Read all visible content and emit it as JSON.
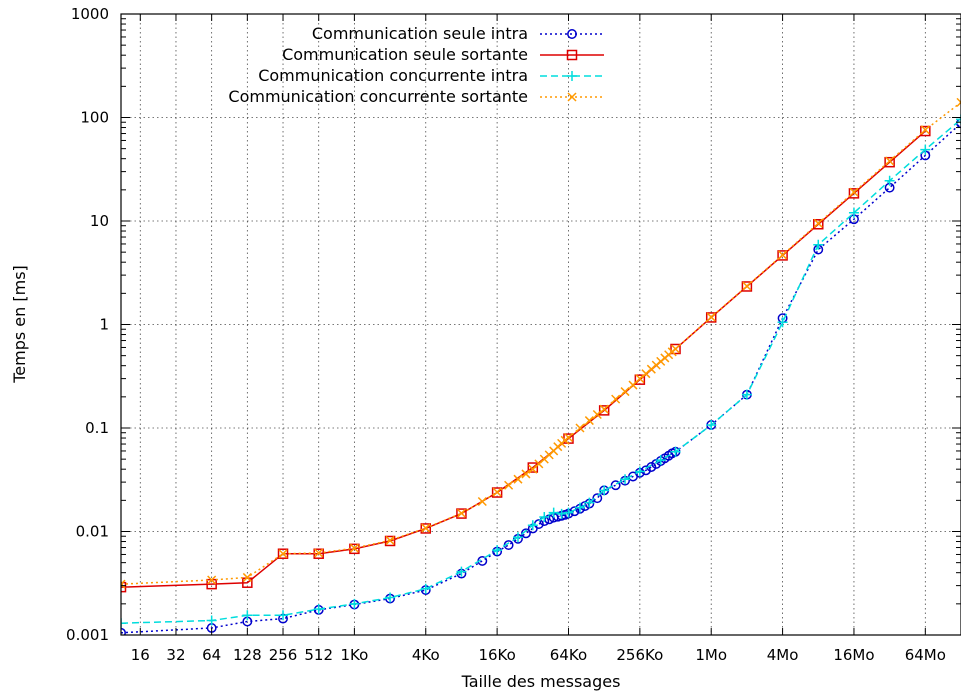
{
  "chart_data": {
    "type": "line",
    "title": "",
    "xlabel": "Taille des messages",
    "ylabel": "Temps en [ms]",
    "x_scale": "log2",
    "y_scale": "log10",
    "xlim_bytes": [
      11,
      134217728
    ],
    "ylim": [
      0.001,
      1000
    ],
    "grid": true,
    "legend_position": "top-center",
    "x_ticks": [
      {
        "value": 16,
        "label": "16"
      },
      {
        "value": 32,
        "label": "32"
      },
      {
        "value": 64,
        "label": "64"
      },
      {
        "value": 128,
        "label": "128"
      },
      {
        "value": 256,
        "label": "256"
      },
      {
        "value": 512,
        "label": "512"
      },
      {
        "value": 1024,
        "label": "1Ko"
      },
      {
        "value": 4096,
        "label": "4Ko"
      },
      {
        "value": 16384,
        "label": "16Ko"
      },
      {
        "value": 65536,
        "label": "64Ko"
      },
      {
        "value": 262144,
        "label": "256Ko"
      },
      {
        "value": 1048576,
        "label": "1Mo"
      },
      {
        "value": 4194304,
        "label": "4Mo"
      },
      {
        "value": 16777216,
        "label": "16Mo"
      },
      {
        "value": 67108864,
        "label": "64Mo"
      }
    ],
    "y_ticks": [
      {
        "value": 0.001,
        "label": "0.001"
      },
      {
        "value": 0.01,
        "label": "0.01"
      },
      {
        "value": 0.1,
        "label": "0.1"
      },
      {
        "value": 1,
        "label": "1"
      },
      {
        "value": 10,
        "label": "10"
      },
      {
        "value": 100,
        "label": "100"
      },
      {
        "value": 1000,
        "label": "1000"
      }
    ],
    "series": [
      {
        "name": "Communication seule intra",
        "color": "#0000cc",
        "line": "dotted",
        "marker": "circle",
        "x": [
          11,
          64,
          128,
          256,
          512,
          1024,
          2048,
          4096,
          8192,
          12288,
          16384,
          20480,
          24576,
          28672,
          32768,
          36864,
          40960,
          45056,
          49152,
          53248,
          57344,
          61440,
          65536,
          73728,
          81920,
          90112,
          98304,
          114688,
          131072,
          163840,
          196608,
          229376,
          262144,
          294912,
          327680,
          360448,
          393216,
          425984,
          458752,
          491520,
          524288,
          1048576,
          2097152,
          4194304,
          8388608,
          16777216,
          33554432,
          67108864,
          134217728
        ],
        "y": [
          0.00105,
          0.00117,
          0.00135,
          0.00144,
          0.00175,
          0.00197,
          0.00225,
          0.00272,
          0.00392,
          0.0052,
          0.0064,
          0.0074,
          0.0085,
          0.0096,
          0.0107,
          0.0118,
          0.0126,
          0.0131,
          0.0136,
          0.0139,
          0.0142,
          0.0145,
          0.0149,
          0.0157,
          0.0166,
          0.0176,
          0.0186,
          0.021,
          0.025,
          0.028,
          0.031,
          0.034,
          0.037,
          0.039,
          0.042,
          0.045,
          0.048,
          0.051,
          0.054,
          0.057,
          0.059,
          0.107,
          0.21,
          1.15,
          5.3,
          10.4,
          21.0,
          43.0,
          88.0
        ]
      },
      {
        "name": "Communication seule sortante",
        "color": "#dd0000",
        "line": "solid",
        "marker": "square",
        "x": [
          11,
          64,
          128,
          256,
          512,
          1024,
          2048,
          4096,
          8192,
          16384,
          32768,
          65536,
          131072,
          262144,
          524288,
          1048576,
          2097152,
          4194304,
          8388608,
          16777216,
          33554432,
          67108864
        ],
        "y": [
          0.0029,
          0.0031,
          0.0032,
          0.0061,
          0.0061,
          0.0068,
          0.0081,
          0.0107,
          0.0149,
          0.0238,
          0.0415,
          0.079,
          0.148,
          0.293,
          0.58,
          1.17,
          2.33,
          4.65,
          9.3,
          18.5,
          37.0,
          74.0
        ]
      },
      {
        "name": "Communication concurrente intra",
        "color": "#00dddd",
        "line": "dashed",
        "marker": "plus",
        "x": [
          11,
          64,
          128,
          256,
          512,
          1024,
          2048,
          4096,
          8192,
          16384,
          24576,
          32768,
          40960,
          49152,
          57344,
          65536,
          81920,
          98304,
          131072,
          196608,
          262144,
          393216,
          524288,
          1048576,
          2097152,
          4194304,
          8388608,
          16777216,
          33554432,
          67108864,
          134217728
        ],
        "y": [
          0.0013,
          0.00138,
          0.00155,
          0.00155,
          0.00178,
          0.002,
          0.0023,
          0.0028,
          0.0041,
          0.0066,
          0.0088,
          0.0115,
          0.0138,
          0.0152,
          0.0148,
          0.0152,
          0.017,
          0.019,
          0.025,
          0.032,
          0.038,
          0.049,
          0.059,
          0.107,
          0.21,
          1.05,
          5.9,
          12.0,
          24.5,
          49.0,
          96.0
        ]
      },
      {
        "name": "Communication concurrente sortante",
        "color": "#ff9900",
        "line": "dotted",
        "marker": "cross",
        "x": [
          11,
          64,
          128,
          256,
          512,
          1024,
          2048,
          4096,
          8192,
          12288,
          16384,
          20480,
          24576,
          28672,
          32768,
          36864,
          40960,
          45056,
          49152,
          53248,
          57344,
          61440,
          65536,
          81920,
          98304,
          114688,
          131072,
          163840,
          196608,
          229376,
          262144,
          294912,
          327680,
          360448,
          393216,
          425984,
          458752,
          491520,
          524288,
          1048576,
          2097152,
          4194304,
          8388608,
          16777216,
          33554432,
          67108864,
          134217728
        ],
        "y": [
          0.0031,
          0.0034,
          0.0036,
          0.0061,
          0.0062,
          0.0069,
          0.0082,
          0.0108,
          0.015,
          0.0195,
          0.024,
          0.028,
          0.032,
          0.036,
          0.04,
          0.045,
          0.05,
          0.055,
          0.06,
          0.066,
          0.071,
          0.076,
          0.081,
          0.1,
          0.118,
          0.135,
          0.152,
          0.19,
          0.225,
          0.26,
          0.3,
          0.335,
          0.37,
          0.405,
          0.44,
          0.475,
          0.51,
          0.545,
          0.58,
          1.18,
          2.35,
          4.7,
          9.5,
          19.0,
          38.0,
          76.0,
          140.0
        ]
      }
    ]
  }
}
